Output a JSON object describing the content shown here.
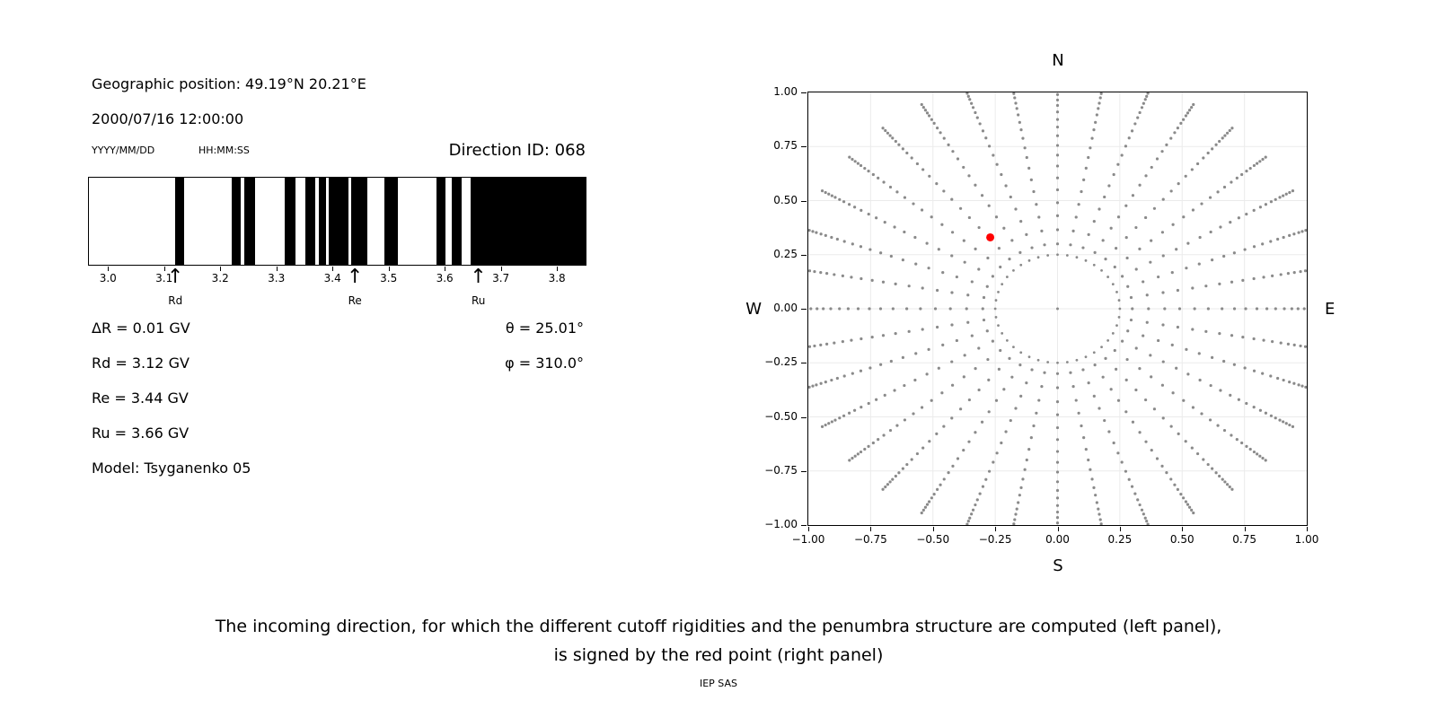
{
  "left_panel": {
    "geo_position": "Geographic position: 49.19°N 20.21°E",
    "datetime": "2000/07/16 12:00:00",
    "date_format_label": "YYYY/MM/DD",
    "time_format_label": "HH:MM:SS",
    "direction_id_label": "Direction ID: 068",
    "info_left": [
      "ΔR = 0.01 GV",
      "Rd = 3.12 GV",
      "Re = 3.44 GV",
      "Ru = 3.66 GV",
      "Model: Tsyganenko 05"
    ],
    "info_right": [
      "θ = 25.01°",
      "φ = 310.0°"
    ]
  },
  "right_panel": {
    "compass": {
      "top": "N",
      "bottom": "S",
      "left": "W",
      "right": "E"
    }
  },
  "caption": {
    "line1": "The incoming direction, for which the different cutoff rigidities and the penumbra structure are computed (left panel),",
    "line2": "is signed by the red point (right panel)"
  },
  "footer": "IEP SAS",
  "chart_data": [
    {
      "type": "bar",
      "name": "penumbra-structure",
      "xlim": [
        2.966,
        3.851
      ],
      "x_ticks": [
        3.0,
        3.1,
        3.2,
        3.3,
        3.4,
        3.5,
        3.6,
        3.7,
        3.8
      ],
      "black_bands_gv": [
        [
          3.12,
          3.136
        ],
        [
          3.221,
          3.236
        ],
        [
          3.243,
          3.262
        ],
        [
          3.315,
          3.334
        ],
        [
          3.352,
          3.37
        ],
        [
          3.376,
          3.389
        ],
        [
          3.394,
          3.428
        ],
        [
          3.433,
          3.462
        ],
        [
          3.493,
          3.517
        ],
        [
          3.586,
          3.602
        ],
        [
          3.613,
          3.63
        ],
        [
          3.646,
          3.851
        ]
      ],
      "markers": [
        {
          "label": "Rd",
          "value_gv": 3.12
        },
        {
          "label": "Re",
          "value_gv": 3.44
        },
        {
          "label": "Ru",
          "value_gv": 3.66
        }
      ]
    },
    {
      "type": "scatter",
      "name": "incoming-direction-grid",
      "xlim": [
        -1.0,
        1.0
      ],
      "ylim": [
        -1.0,
        1.0
      ],
      "x_ticks": [
        -1.0,
        -0.75,
        -0.5,
        -0.25,
        0.0,
        0.25,
        0.5,
        0.75,
        1.0
      ],
      "y_ticks": [
        -1.0,
        -0.75,
        -0.5,
        -0.25,
        0.0,
        0.25,
        0.5,
        0.75,
        1.0
      ],
      "compass_labels": {
        "top": "N",
        "bottom": "S",
        "left": "W",
        "right": "E"
      },
      "gray_dot_color": "#8a8a8a",
      "grid_color": "#ebebeb",
      "red_point": {
        "x": -0.27,
        "y": 0.33,
        "color": "#ff0000"
      },
      "pattern": {
        "rays": {
          "count": 36,
          "azimuth_step_deg": 10,
          "radii": [
            0.3,
            0.365,
            0.43,
            0.49,
            0.55,
            0.605,
            0.66,
            0.71,
            0.755,
            0.8,
            0.84,
            0.875,
            0.91,
            0.94,
            0.965,
            0.99,
            1.01,
            1.03,
            1.045,
            1.06,
            1.075,
            1.09
          ]
        },
        "inner_ring": {
          "radius": 0.25,
          "n_points": 40
        },
        "center_dot": true,
        "clip": 1.02
      }
    }
  ]
}
